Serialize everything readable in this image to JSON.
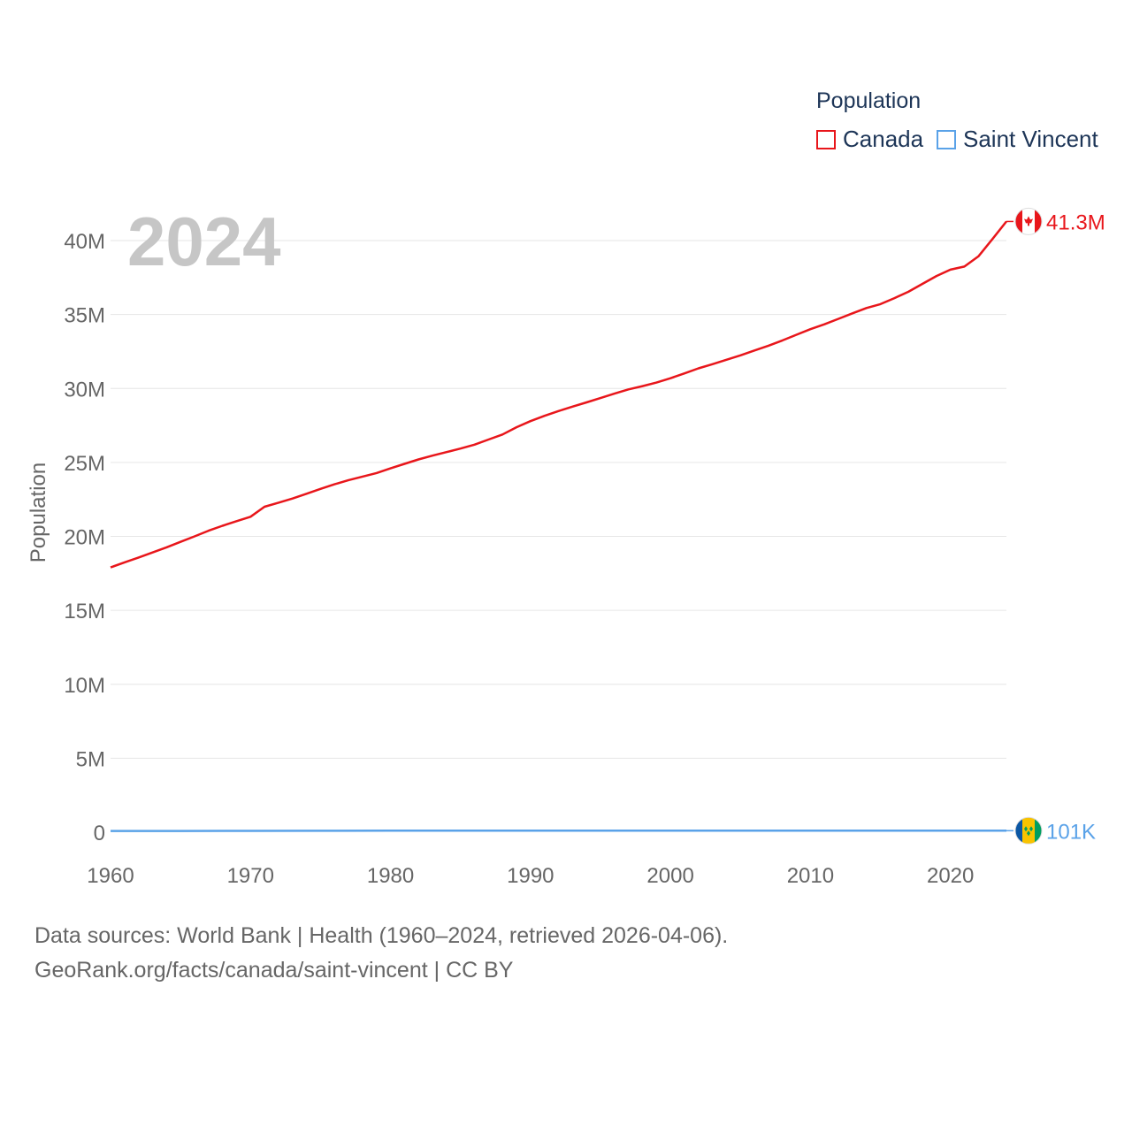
{
  "chart_data": {
    "type": "line",
    "title": "",
    "current_year": "2024",
    "ylabel": "Population",
    "xlabel": "",
    "xlim": [
      1960,
      2024
    ],
    "ylim": [
      0,
      43000000
    ],
    "x_ticks": [
      "1960",
      "1970",
      "1980",
      "1990",
      "2000",
      "2010",
      "2020"
    ],
    "y_ticks": [
      {
        "value": 0,
        "label": "0"
      },
      {
        "value": 5000000,
        "label": "5M"
      },
      {
        "value": 10000000,
        "label": "10M"
      },
      {
        "value": 15000000,
        "label": "15M"
      },
      {
        "value": 20000000,
        "label": "20M"
      },
      {
        "value": 25000000,
        "label": "25M"
      },
      {
        "value": 30000000,
        "label": "30M"
      },
      {
        "value": 35000000,
        "label": "35M"
      },
      {
        "value": 40000000,
        "label": "40M"
      }
    ],
    "legend": {
      "title": "Population",
      "position": "top-right"
    },
    "grid": true,
    "series": [
      {
        "name": "Canada",
        "color": "#e8161b",
        "end_label": "41.3M",
        "flag": "canada-flag",
        "points": [
          [
            1960,
            17900000
          ],
          [
            1961,
            18240000
          ],
          [
            1962,
            18570000
          ],
          [
            1963,
            18910000
          ],
          [
            1964,
            19260000
          ],
          [
            1965,
            19630000
          ],
          [
            1966,
            20000000
          ],
          [
            1967,
            20380000
          ],
          [
            1968,
            20720000
          ],
          [
            1969,
            21030000
          ],
          [
            1970,
            21330000
          ],
          [
            1971,
            22000000
          ],
          [
            1972,
            22280000
          ],
          [
            1973,
            22560000
          ],
          [
            1974,
            22880000
          ],
          [
            1975,
            23210000
          ],
          [
            1976,
            23520000
          ],
          [
            1977,
            23800000
          ],
          [
            1978,
            24040000
          ],
          [
            1979,
            24280000
          ],
          [
            1980,
            24600000
          ],
          [
            1981,
            24900000
          ],
          [
            1982,
            25200000
          ],
          [
            1983,
            25460000
          ],
          [
            1984,
            25700000
          ],
          [
            1985,
            25940000
          ],
          [
            1986,
            26200000
          ],
          [
            1987,
            26550000
          ],
          [
            1988,
            26890000
          ],
          [
            1989,
            27380000
          ],
          [
            1990,
            27790000
          ],
          [
            1991,
            28150000
          ],
          [
            1992,
            28470000
          ],
          [
            1993,
            28770000
          ],
          [
            1994,
            29060000
          ],
          [
            1995,
            29350000
          ],
          [
            1996,
            29650000
          ],
          [
            1997,
            29940000
          ],
          [
            1998,
            30160000
          ],
          [
            1999,
            30400000
          ],
          [
            2000,
            30690000
          ],
          [
            2001,
            31020000
          ],
          [
            2002,
            31360000
          ],
          [
            2003,
            31640000
          ],
          [
            2004,
            31940000
          ],
          [
            2005,
            32240000
          ],
          [
            2006,
            32570000
          ],
          [
            2007,
            32890000
          ],
          [
            2008,
            33250000
          ],
          [
            2009,
            33630000
          ],
          [
            2010,
            34010000
          ],
          [
            2011,
            34340000
          ],
          [
            2012,
            34710000
          ],
          [
            2013,
            35080000
          ],
          [
            2014,
            35440000
          ],
          [
            2015,
            35700000
          ],
          [
            2016,
            36110000
          ],
          [
            2017,
            36540000
          ],
          [
            2018,
            37070000
          ],
          [
            2019,
            37600000
          ],
          [
            2020,
            38030000
          ],
          [
            2021,
            38240000
          ],
          [
            2022,
            38930000
          ],
          [
            2023,
            40100000
          ],
          [
            2024,
            41290000
          ]
        ]
      },
      {
        "name": "Saint Vincent",
        "color": "#5aa2e8",
        "end_label": "101K",
        "flag": "saint-vincent-flag",
        "points": [
          [
            1960,
            81000
          ],
          [
            1965,
            86000
          ],
          [
            1970,
            90000
          ],
          [
            1975,
            96000
          ],
          [
            1980,
            101000
          ],
          [
            1985,
            105000
          ],
          [
            1990,
            108000
          ],
          [
            1995,
            109000
          ],
          [
            2000,
            110000
          ],
          [
            2005,
            109000
          ],
          [
            2010,
            108000
          ],
          [
            2015,
            106000
          ],
          [
            2020,
            104000
          ],
          [
            2024,
            101000
          ]
        ]
      }
    ]
  },
  "footer": {
    "source_line": "Data sources: World Bank | Health (1960–2024, retrieved 2026-04-06).",
    "credit_line": "GeoRank.org/facts/canada/saint-vincent | CC BY"
  },
  "colors": {
    "grid": "#e6e6e6",
    "tick_text": "#666666",
    "year_overlay": "#c6c6c6"
  }
}
